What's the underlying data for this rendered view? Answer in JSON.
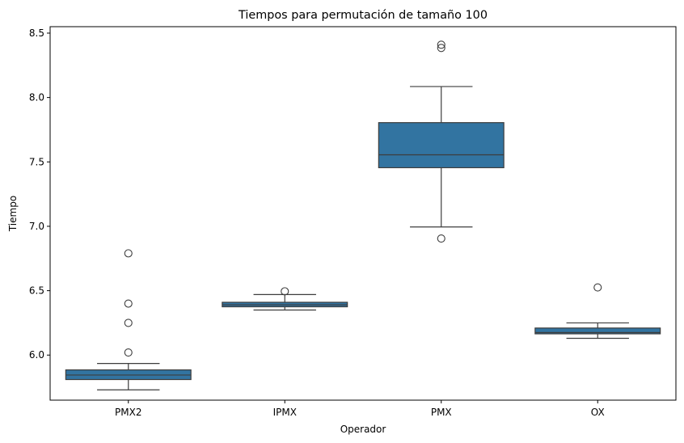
{
  "chart_data": {
    "type": "box",
    "title": "Tiempos para permutación de tamaño 100",
    "xlabel": "Operador",
    "ylabel": "Tiempo",
    "ylim": [
      5.65,
      8.55
    ],
    "yticks": [
      "6.0",
      "6.5",
      "7.0",
      "7.5",
      "8.0",
      "8.5"
    ],
    "grid": false,
    "color": "#3274a1",
    "categories": [
      "PMX2",
      "IPMX",
      "PMX",
      "OX"
    ],
    "boxes": [
      {
        "category": "PMX2",
        "whisker_low": 5.73,
        "q1": 5.81,
        "median": 5.845,
        "q3": 5.885,
        "whisker_high": 5.935,
        "outliers": [
          6.79,
          6.4,
          6.25,
          6.02
        ]
      },
      {
        "category": "IPMX",
        "whisker_low": 6.35,
        "q1": 6.375,
        "median": 6.39,
        "q3": 6.41,
        "whisker_high": 6.47,
        "outliers": [
          6.495
        ]
      },
      {
        "category": "PMX",
        "whisker_low": 6.995,
        "q1": 7.455,
        "median": 7.555,
        "q3": 7.805,
        "whisker_high": 8.085,
        "outliers": [
          8.41,
          8.385,
          6.905
        ]
      },
      {
        "category": "OX",
        "whisker_low": 6.13,
        "q1": 6.165,
        "median": 6.175,
        "q3": 6.21,
        "whisker_high": 6.25,
        "outliers": [
          6.525
        ]
      }
    ]
  }
}
